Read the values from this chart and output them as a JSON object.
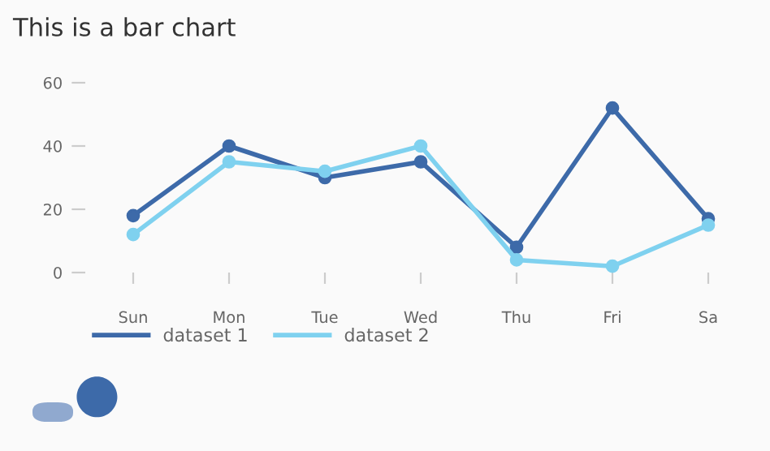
{
  "chart_data": {
    "type": "line",
    "title": "This is a bar chart",
    "categories": [
      "Sun",
      "Mon",
      "Tue",
      "Wed",
      "Thu",
      "Fri",
      "Sa"
    ],
    "series": [
      {
        "name": "dataset 1",
        "color": "#3d6aa9",
        "values": [
          18,
          40,
          30,
          35,
          8,
          52,
          17
        ]
      },
      {
        "name": "dataset 2",
        "color": "#7fd1ef",
        "values": [
          12,
          35,
          32,
          40,
          4,
          2,
          15
        ]
      }
    ],
    "ylim": [
      0,
      60
    ],
    "yticks": [
      0,
      20,
      40,
      60
    ],
    "grid": false,
    "legend": "bottom left",
    "marker": "circle",
    "line_style": "solid"
  }
}
